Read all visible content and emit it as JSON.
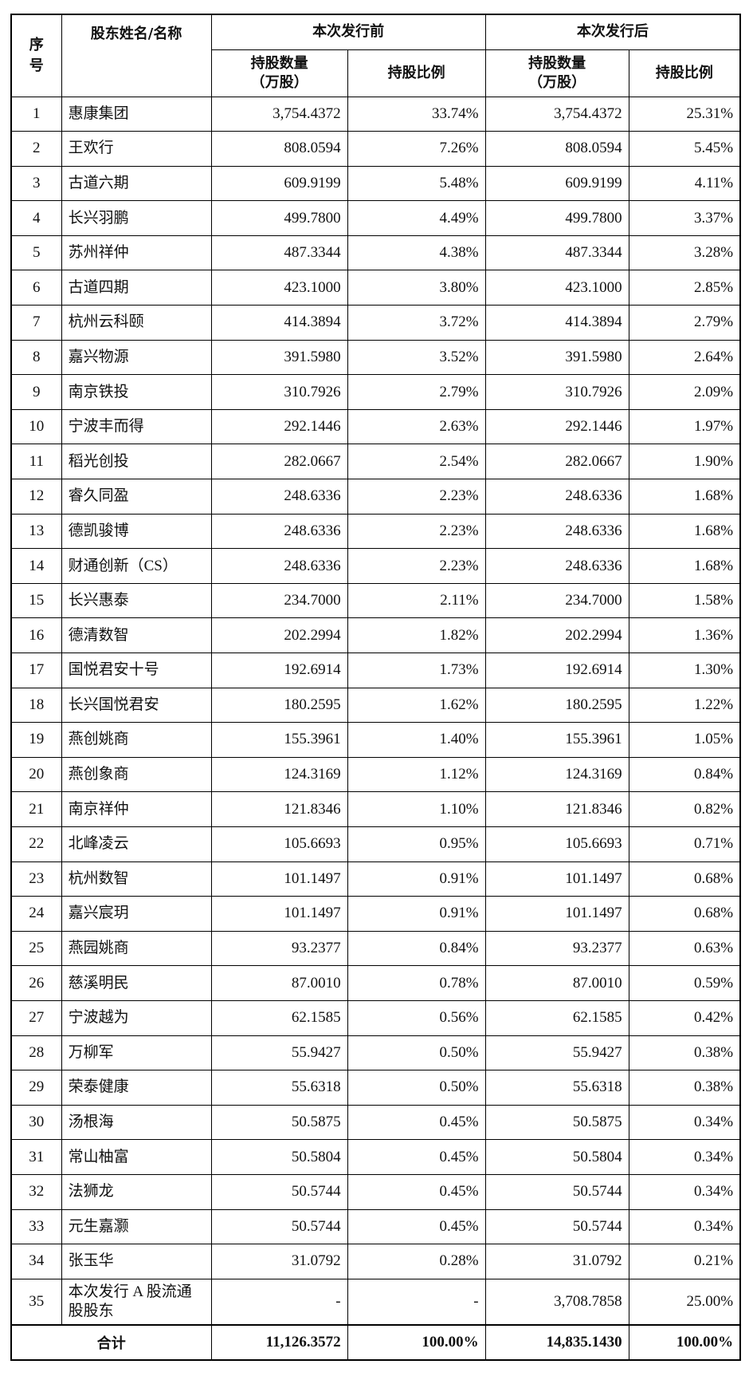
{
  "header": {
    "seq": "序号",
    "name": "股东姓名/名称",
    "groups": [
      "本次发行前",
      "本次发行后"
    ],
    "shares": [
      "持股数量",
      "（万股）"
    ],
    "ratio": "持股比例"
  },
  "table": {
    "rows": [
      [
        "1",
        "惠康集团",
        "3,754.4372",
        "33.74%",
        "3,754.4372",
        "25.31%"
      ],
      [
        "2",
        "王欢行",
        "808.0594",
        "7.26%",
        "808.0594",
        "5.45%"
      ],
      [
        "3",
        "古道六期",
        "609.9199",
        "5.48%",
        "609.9199",
        "4.11%"
      ],
      [
        "4",
        "长兴羽鹏",
        "499.7800",
        "4.49%",
        "499.7800",
        "3.37%"
      ],
      [
        "5",
        "苏州祥仲",
        "487.3344",
        "4.38%",
        "487.3344",
        "3.28%"
      ],
      [
        "6",
        "古道四期",
        "423.1000",
        "3.80%",
        "423.1000",
        "2.85%"
      ],
      [
        "7",
        "杭州云科颐",
        "414.3894",
        "3.72%",
        "414.3894",
        "2.79%"
      ],
      [
        "8",
        "嘉兴物源",
        "391.5980",
        "3.52%",
        "391.5980",
        "2.64%"
      ],
      [
        "9",
        "南京铁投",
        "310.7926",
        "2.79%",
        "310.7926",
        "2.09%"
      ],
      [
        "10",
        "宁波丰而得",
        "292.1446",
        "2.63%",
        "292.1446",
        "1.97%"
      ],
      [
        "11",
        "稻光创投",
        "282.0667",
        "2.54%",
        "282.0667",
        "1.90%"
      ],
      [
        "12",
        "睿久同盈",
        "248.6336",
        "2.23%",
        "248.6336",
        "1.68%"
      ],
      [
        "13",
        "德凯骏博",
        "248.6336",
        "2.23%",
        "248.6336",
        "1.68%"
      ],
      [
        "14",
        "财通创新（CS）",
        "248.6336",
        "2.23%",
        "248.6336",
        "1.68%"
      ],
      [
        "15",
        "长兴惠泰",
        "234.7000",
        "2.11%",
        "234.7000",
        "1.58%"
      ],
      [
        "16",
        "德清数智",
        "202.2994",
        "1.82%",
        "202.2994",
        "1.36%"
      ],
      [
        "17",
        "国悦君安十号",
        "192.6914",
        "1.73%",
        "192.6914",
        "1.30%"
      ],
      [
        "18",
        "长兴国悦君安",
        "180.2595",
        "1.62%",
        "180.2595",
        "1.22%"
      ],
      [
        "19",
        "燕创姚商",
        "155.3961",
        "1.40%",
        "155.3961",
        "1.05%"
      ],
      [
        "20",
        "燕创象商",
        "124.3169",
        "1.12%",
        "124.3169",
        "0.84%"
      ],
      [
        "21",
        "南京祥仲",
        "121.8346",
        "1.10%",
        "121.8346",
        "0.82%"
      ],
      [
        "22",
        "北峰凌云",
        "105.6693",
        "0.95%",
        "105.6693",
        "0.71%"
      ],
      [
        "23",
        "杭州数智",
        "101.1497",
        "0.91%",
        "101.1497",
        "0.68%"
      ],
      [
        "24",
        "嘉兴宸玥",
        "101.1497",
        "0.91%",
        "101.1497",
        "0.68%"
      ],
      [
        "25",
        "燕园姚商",
        "93.2377",
        "0.84%",
        "93.2377",
        "0.63%"
      ],
      [
        "26",
        "慈溪明民",
        "87.0010",
        "0.78%",
        "87.0010",
        "0.59%"
      ],
      [
        "27",
        "宁波越为",
        "62.1585",
        "0.56%",
        "62.1585",
        "0.42%"
      ],
      [
        "28",
        "万柳军",
        "55.9427",
        "0.50%",
        "55.9427",
        "0.38%"
      ],
      [
        "29",
        "荣泰健康",
        "55.6318",
        "0.50%",
        "55.6318",
        "0.38%"
      ],
      [
        "30",
        "汤根海",
        "50.5875",
        "0.45%",
        "50.5875",
        "0.34%"
      ],
      [
        "31",
        "常山柚富",
        "50.5804",
        "0.45%",
        "50.5804",
        "0.34%"
      ],
      [
        "32",
        "法狮龙",
        "50.5744",
        "0.45%",
        "50.5744",
        "0.34%"
      ],
      [
        "33",
        "元生嘉灏",
        "50.5744",
        "0.45%",
        "50.5744",
        "0.34%"
      ],
      [
        "34",
        "张玉华",
        "31.0792",
        "0.28%",
        "31.0792",
        "0.21%"
      ],
      [
        "35",
        "本次发行 A 股流通股股东",
        "-",
        "-",
        "3,708.7858",
        "25.00%"
      ]
    ],
    "total": {
      "label": "合计",
      "values": [
        "11,126.3572",
        "100.00%",
        "14,835.1430",
        "100.00%"
      ]
    }
  }
}
